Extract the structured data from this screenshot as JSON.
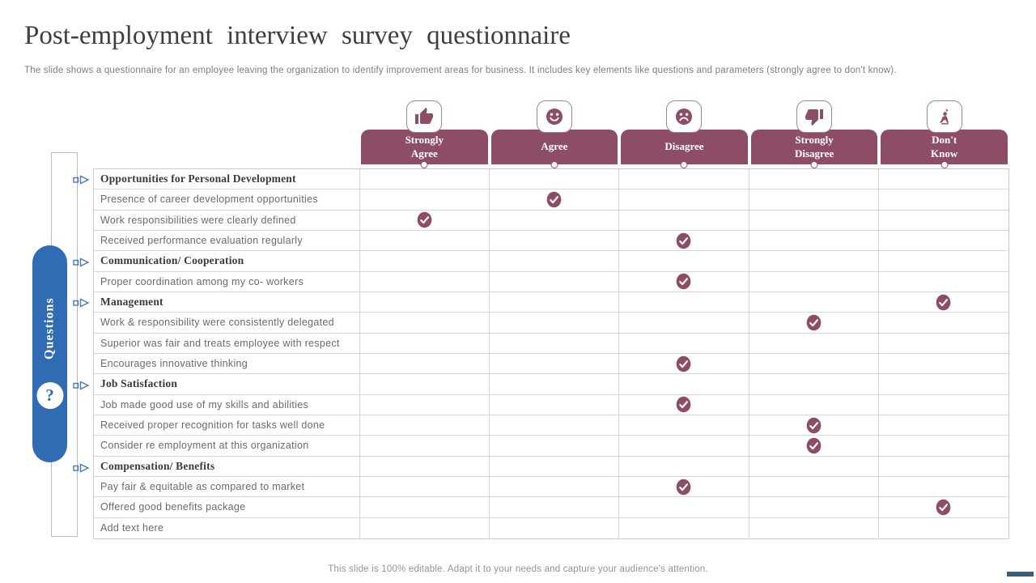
{
  "slide": {
    "title": "Post-employment interview survey questionnaire",
    "subtitle": "The slide shows a questionnaire for an employee leaving the organization to identify improvement areas for business. It includes key elements like questions and parameters (strongly agree to don't know).",
    "footer": "This slide is 100% editable. Adapt it to your needs and capture your audience's attention."
  },
  "colors": {
    "maroon": "#8E4D66",
    "blue": "#2F6CB4",
    "arrow_blue": "#4a7ab0",
    "grid": "#d4d8dc"
  },
  "sidebar": {
    "label": "Questions",
    "help_glyph": "?"
  },
  "columns": [
    {
      "label": "Strongly\nAgree",
      "icon": "thumbs-up-icon"
    },
    {
      "label": "Agree",
      "icon": "smile-icon"
    },
    {
      "label": "Disagree",
      "icon": "frown-icon"
    },
    {
      "label": "Strongly\nDisagree",
      "icon": "thumbs-down-icon"
    },
    {
      "label": "Don't\nKnow",
      "icon": "thinker-icon"
    }
  ],
  "rows": [
    {
      "label": "Opportunities for Personal Development",
      "category": true,
      "checked": null
    },
    {
      "label": "Presence of career development opportunities",
      "category": false,
      "checked": 1
    },
    {
      "label": "Work responsibilities were clearly defined",
      "category": false,
      "checked": 0
    },
    {
      "label": "Received performance evaluation regularly",
      "category": false,
      "checked": 2
    },
    {
      "label": "Communication/ Cooperation",
      "category": true,
      "checked": null
    },
    {
      "label": "Proper coordination among my co- workers",
      "category": false,
      "checked": 2
    },
    {
      "label": "Management",
      "category": true,
      "checked": 4
    },
    {
      "label": "Work & responsibility were consistently delegated",
      "category": false,
      "checked": 3
    },
    {
      "label": "Superior was fair and treats employee with respect",
      "category": false,
      "checked": null
    },
    {
      "label": "Encourages innovative thinking",
      "category": false,
      "checked": 2
    },
    {
      "label": "Job Satisfaction",
      "category": true,
      "checked": null
    },
    {
      "label": "Job made good use of my skills and abilities",
      "category": false,
      "checked": 2
    },
    {
      "label": "Received proper recognition for tasks well done",
      "category": false,
      "checked": 3
    },
    {
      "label": "Consider re employment at this organization",
      "category": false,
      "checked": 3
    },
    {
      "label": "Compensation/ Benefits",
      "category": true,
      "checked": null
    },
    {
      "label": "Pay fair & equitable as compared to market",
      "category": false,
      "checked": 2
    },
    {
      "label": "Offered good benefits package",
      "category": false,
      "checked": 4
    },
    {
      "label": "Add text here",
      "category": false,
      "checked": null
    }
  ]
}
